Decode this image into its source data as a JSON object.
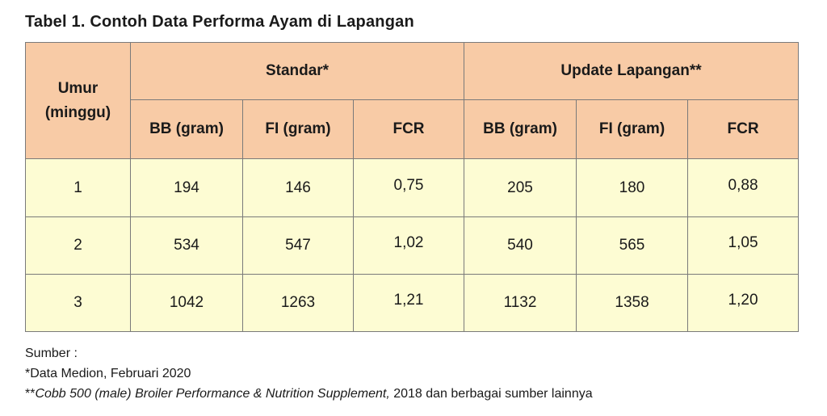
{
  "title": "Tabel 1. Contoh Data Performa Ayam di Lapangan",
  "table": {
    "umur_header_line1": "Umur",
    "umur_header_line2": "(minggu)",
    "group1": "Standar*",
    "group2": "Update Lapangan**",
    "subheaders": [
      "BB (gram)",
      "FI (gram)",
      "FCR",
      "BB (gram)",
      "FI (gram)",
      "FCR"
    ],
    "rows": [
      [
        "1",
        "194",
        "146",
        "0,75",
        "205",
        "180",
        "0,88"
      ],
      [
        "2",
        "534",
        "547",
        "1,02",
        "540",
        "565",
        "1,05"
      ],
      [
        "3",
        "1042",
        "1263",
        "1,21",
        "1132",
        "1358",
        "1,20"
      ]
    ]
  },
  "source": {
    "label": "Sumber :",
    "note1": "*Data Medion, Februari 2020",
    "note2_prefix": "**",
    "note2_italic": "Cobb 500 (male) Broiler Performance & Nutrition Supplement,",
    "note2_rest": " 2018 dan berbagai sumber lainnya"
  },
  "colors": {
    "header_bg": "#f8cba6",
    "body_bg": "#fdfcd3",
    "border": "#7a7a7a"
  }
}
